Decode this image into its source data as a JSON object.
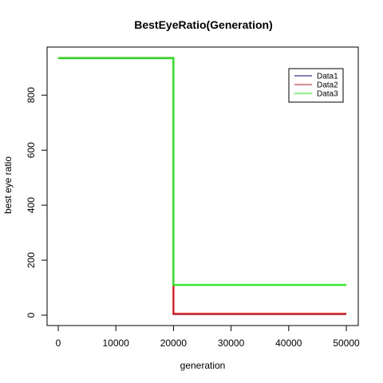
{
  "chart_data": {
    "type": "line",
    "title": "BestEyeRatio(Generation)",
    "xlabel": "generation",
    "ylabel": "best eye ratio",
    "xlim": [
      0,
      50000
    ],
    "ylim": [
      0,
      940
    ],
    "xticks": [
      0,
      10000,
      20000,
      30000,
      40000,
      50000
    ],
    "yticks": [
      0,
      200,
      400,
      600,
      800
    ],
    "grid": false,
    "legend_position": "top-right",
    "step": true,
    "series": [
      {
        "name": "Data1",
        "color": "#00008b",
        "x": [
          0,
          20000,
          20000,
          50000
        ],
        "y": [
          935,
          935,
          4,
          4
        ]
      },
      {
        "name": "Data2",
        "color": "#ff0000",
        "x": [
          0,
          20000,
          20000,
          50000
        ],
        "y": [
          935,
          935,
          5,
          5
        ]
      },
      {
        "name": "Data3",
        "color": "#00ff00",
        "x": [
          0,
          20000,
          20000,
          50000
        ],
        "y": [
          935,
          935,
          110,
          110
        ]
      }
    ]
  }
}
